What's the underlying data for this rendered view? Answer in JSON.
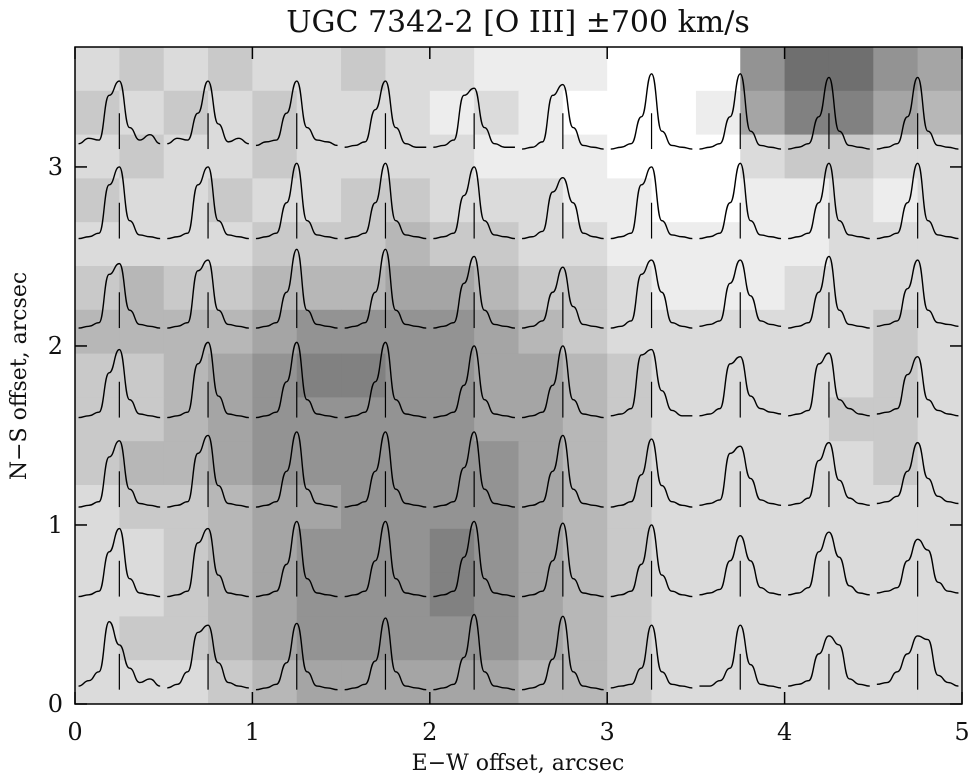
{
  "chart_data": {
    "type": "spectra-map",
    "title": "UGC 7342-2 [O III] ±700 km/s",
    "x_label": "E−W offset, arcsec",
    "y_label": "N−S offset, arcsec",
    "xlim": [
      0,
      5
    ],
    "ylim": [
      0,
      3.67
    ],
    "xticks": [
      0,
      1,
      2,
      3,
      4,
      5
    ],
    "yticks": [
      0,
      1,
      2,
      3
    ],
    "image": [
      [
        2,
        3,
        2,
        3,
        2,
        2,
        3,
        2,
        2,
        1,
        1,
        1,
        0,
        0,
        0,
        6,
        8,
        8,
        6,
        5
      ],
      [
        3,
        2,
        3,
        2,
        3,
        2,
        2,
        2,
        1,
        2,
        1,
        0,
        0,
        0,
        1,
        5,
        7,
        7,
        5,
        4
      ],
      [
        2,
        3,
        2,
        2,
        3,
        2,
        2,
        2,
        2,
        1,
        1,
        1,
        0,
        0,
        0,
        2,
        3,
        3,
        2,
        2
      ],
      [
        3,
        2,
        2,
        3,
        2,
        2,
        3,
        3,
        2,
        2,
        2,
        1,
        1,
        0,
        0,
        1,
        1,
        2,
        1,
        2
      ],
      [
        2,
        2,
        2,
        2,
        3,
        3,
        3,
        4,
        3,
        3,
        2,
        2,
        1,
        1,
        1,
        1,
        1,
        2,
        2,
        2
      ],
      [
        3,
        4,
        3,
        3,
        4,
        4,
        4,
        5,
        5,
        4,
        3,
        3,
        2,
        1,
        1,
        1,
        2,
        2,
        2,
        2
      ],
      [
        4,
        4,
        4,
        4,
        5,
        6,
        6,
        6,
        6,
        5,
        4,
        3,
        2,
        2,
        2,
        2,
        2,
        2,
        3,
        2
      ],
      [
        3,
        3,
        4,
        5,
        6,
        7,
        7,
        6,
        6,
        5,
        5,
        4,
        3,
        2,
        2,
        2,
        2,
        2,
        3,
        2
      ],
      [
        3,
        3,
        4,
        5,
        6,
        6,
        6,
        6,
        6,
        5,
        5,
        4,
        3,
        2,
        2,
        2,
        2,
        3,
        3,
        2
      ],
      [
        3,
        4,
        4,
        5,
        6,
        6,
        6,
        6,
        6,
        6,
        5,
        4,
        3,
        2,
        2,
        2,
        2,
        2,
        3,
        2
      ],
      [
        2,
        3,
        3,
        4,
        5,
        5,
        6,
        6,
        6,
        6,
        5,
        4,
        3,
        2,
        2,
        2,
        2,
        2,
        2,
        2
      ],
      [
        2,
        2,
        3,
        4,
        5,
        6,
        6,
        6,
        7,
        6,
        5,
        4,
        3,
        2,
        2,
        2,
        2,
        2,
        2,
        2
      ],
      [
        2,
        2,
        3,
        4,
        5,
        6,
        6,
        6,
        7,
        6,
        5,
        4,
        3,
        2,
        2,
        2,
        2,
        2,
        2,
        2
      ],
      [
        2,
        3,
        3,
        4,
        5,
        6,
        6,
        6,
        6,
        6,
        5,
        4,
        3,
        2,
        2,
        2,
        2,
        2,
        2,
        2
      ],
      [
        2,
        2,
        2,
        3,
        4,
        5,
        5,
        5,
        5,
        5,
        4,
        4,
        3,
        2,
        2,
        2,
        2,
        2,
        2,
        2
      ]
    ],
    "cols_x": [
      0.25,
      0.75,
      1.25,
      1.75,
      2.25,
      2.75,
      3.25,
      3.75,
      4.25,
      4.75
    ],
    "rows_y": [
      0.08,
      0.6,
      1.1,
      1.6,
      2.1,
      2.6,
      3.1
    ],
    "spectra": [
      [
        [
          0.02,
          0.05,
          0.1,
          0.38,
          0.25,
          0.12,
          0.04,
          0.06,
          0.02
        ],
        [
          0.01,
          0.03,
          0.1,
          0.32,
          0.36,
          0.15,
          0.04,
          0.02,
          0.01
        ],
        [
          0,
          0.01,
          0.03,
          0.15,
          0.37,
          0.1,
          0.02,
          0.01,
          0
        ],
        [
          0,
          0.01,
          0.03,
          0.16,
          0.4,
          0.1,
          0.02,
          0.01,
          0
        ],
        [
          0,
          0.01,
          0.03,
          0.18,
          0.42,
          0.1,
          0.02,
          0.01,
          0
        ],
        [
          0,
          0.01,
          0.03,
          0.17,
          0.41,
          0.1,
          0.02,
          0.01,
          0
        ],
        [
          0.01,
          0.02,
          0.03,
          0.12,
          0.36,
          0.1,
          0.03,
          0.02,
          0.01
        ],
        [
          0.02,
          0.02,
          0.05,
          0.12,
          0.36,
          0.14,
          0.03,
          0.02,
          0.01
        ],
        [
          0.02,
          0.03,
          0.05,
          0.2,
          0.3,
          0.25,
          0.06,
          0.03,
          0.02
        ],
        [
          0.03,
          0.04,
          0.1,
          0.2,
          0.3,
          0.28,
          0.08,
          0.04,
          0.02
        ]
      ],
      [
        [
          0,
          0.01,
          0.03,
          0.25,
          0.38,
          0.1,
          0.02,
          0.01,
          0
        ],
        [
          0,
          0.01,
          0.03,
          0.3,
          0.38,
          0.12,
          0.02,
          0.01,
          0
        ],
        [
          0,
          0.01,
          0.03,
          0.18,
          0.42,
          0.1,
          0.02,
          0.01,
          0
        ],
        [
          0,
          0.01,
          0.03,
          0.2,
          0.42,
          0.1,
          0.02,
          0.01,
          0
        ],
        [
          0,
          0.01,
          0.03,
          0.22,
          0.42,
          0.1,
          0.02,
          0.01,
          0
        ],
        [
          0,
          0.01,
          0.03,
          0.2,
          0.41,
          0.1,
          0.02,
          0.01,
          0
        ],
        [
          0,
          0.01,
          0.03,
          0.18,
          0.4,
          0.12,
          0.03,
          0.01,
          0
        ],
        [
          0.01,
          0.02,
          0.04,
          0.2,
          0.34,
          0.2,
          0.05,
          0.02,
          0.01
        ],
        [
          0.01,
          0.02,
          0.05,
          0.25,
          0.36,
          0.22,
          0.06,
          0.02,
          0.01
        ],
        [
          0.02,
          0.03,
          0.05,
          0.2,
          0.32,
          0.26,
          0.08,
          0.03,
          0.02
        ]
      ],
      [
        [
          0,
          0.01,
          0.03,
          0.28,
          0.37,
          0.1,
          0.02,
          0.01,
          0
        ],
        [
          0,
          0.01,
          0.03,
          0.3,
          0.4,
          0.12,
          0.02,
          0.01,
          0
        ],
        [
          0,
          0.01,
          0.03,
          0.2,
          0.42,
          0.1,
          0.02,
          0.01,
          0
        ],
        [
          0,
          0.01,
          0.03,
          0.2,
          0.42,
          0.1,
          0.02,
          0.01,
          0
        ],
        [
          0,
          0.01,
          0.03,
          0.22,
          0.42,
          0.1,
          0.02,
          0.01,
          0
        ],
        [
          0,
          0.01,
          0.03,
          0.2,
          0.4,
          0.1,
          0.02,
          0.01,
          0
        ],
        [
          0,
          0.01,
          0.03,
          0.18,
          0.38,
          0.12,
          0.03,
          0.01,
          0
        ],
        [
          0.01,
          0.02,
          0.04,
          0.3,
          0.34,
          0.16,
          0.04,
          0.02,
          0.01
        ],
        [
          0.01,
          0.02,
          0.05,
          0.26,
          0.36,
          0.15,
          0.05,
          0.02,
          0.01
        ],
        [
          0.02,
          0.03,
          0.06,
          0.2,
          0.36,
          0.16,
          0.06,
          0.03,
          0.02
        ]
      ],
      [
        [
          0,
          0.01,
          0.03,
          0.25,
          0.38,
          0.1,
          0.02,
          0.01,
          0
        ],
        [
          0,
          0.01,
          0.03,
          0.3,
          0.42,
          0.12,
          0.02,
          0.01,
          0
        ],
        [
          0,
          0.01,
          0.03,
          0.2,
          0.42,
          0.1,
          0.02,
          0.01,
          0
        ],
        [
          0,
          0.01,
          0.03,
          0.2,
          0.42,
          0.1,
          0.02,
          0.01,
          0
        ],
        [
          0,
          0.01,
          0.03,
          0.18,
          0.4,
          0.1,
          0.02,
          0.01,
          0
        ],
        [
          0,
          0.01,
          0.03,
          0.18,
          0.4,
          0.1,
          0.02,
          0.01,
          0
        ],
        [
          0.01,
          0.02,
          0.05,
          0.35,
          0.38,
          0.15,
          0.04,
          0.01,
          0.01
        ],
        [
          0.01,
          0.02,
          0.05,
          0.3,
          0.34,
          0.12,
          0.05,
          0.03,
          0.02
        ],
        [
          0.01,
          0.02,
          0.04,
          0.3,
          0.36,
          0.1,
          0.05,
          0.02,
          0.01
        ],
        [
          0.02,
          0.03,
          0.05,
          0.24,
          0.34,
          0.1,
          0.04,
          0.02,
          0.01
        ]
      ],
      [
        [
          0,
          0.01,
          0.03,
          0.3,
          0.36,
          0.1,
          0.02,
          0.01,
          0
        ],
        [
          0,
          0.01,
          0.03,
          0.32,
          0.38,
          0.1,
          0.02,
          0.01,
          0
        ],
        [
          0,
          0.01,
          0.03,
          0.2,
          0.44,
          0.1,
          0.02,
          0.01,
          0
        ],
        [
          0,
          0.01,
          0.03,
          0.2,
          0.44,
          0.1,
          0.02,
          0.01,
          0
        ],
        [
          0,
          0.01,
          0.03,
          0.25,
          0.4,
          0.1,
          0.02,
          0.01,
          0
        ],
        [
          0,
          0.01,
          0.04,
          0.2,
          0.34,
          0.12,
          0.02,
          0.01,
          0
        ],
        [
          0,
          0.01,
          0.04,
          0.3,
          0.38,
          0.2,
          0.03,
          0.01,
          0
        ],
        [
          0.01,
          0.02,
          0.04,
          0.25,
          0.38,
          0.18,
          0.04,
          0.02,
          0.01
        ],
        [
          0,
          0.01,
          0.03,
          0.2,
          0.4,
          0.1,
          0.02,
          0.01,
          0
        ],
        [
          0.01,
          0.02,
          0.04,
          0.22,
          0.38,
          0.1,
          0.03,
          0.02,
          0.01
        ]
      ],
      [
        [
          0,
          0.01,
          0.03,
          0.3,
          0.4,
          0.1,
          0.02,
          0.01,
          0
        ],
        [
          0,
          0.01,
          0.03,
          0.3,
          0.4,
          0.1,
          0.02,
          0.01,
          0
        ],
        [
          0,
          0.01,
          0.03,
          0.2,
          0.42,
          0.1,
          0.02,
          0.01,
          0
        ],
        [
          0,
          0.01,
          0.03,
          0.2,
          0.42,
          0.1,
          0.02,
          0.01,
          0
        ],
        [
          0,
          0.01,
          0.03,
          0.24,
          0.4,
          0.1,
          0.02,
          0.01,
          0
        ],
        [
          0,
          0.01,
          0.04,
          0.26,
          0.34,
          0.2,
          0.03,
          0.01,
          0
        ],
        [
          0,
          0.01,
          0.03,
          0.3,
          0.4,
          0.1,
          0.02,
          0.01,
          0
        ],
        [
          0,
          0.01,
          0.03,
          0.2,
          0.42,
          0.1,
          0.02,
          0.01,
          0
        ],
        [
          0,
          0.01,
          0.03,
          0.2,
          0.42,
          0.1,
          0.02,
          0.01,
          0
        ],
        [
          0,
          0.01,
          0.03,
          0.2,
          0.42,
          0.1,
          0.02,
          0.01,
          0
        ]
      ],
      [
        [
          0.03,
          0.06,
          0.05,
          0.3,
          0.38,
          0.12,
          0.05,
          0.08,
          0.03
        ],
        [
          0.03,
          0.06,
          0.05,
          0.2,
          0.38,
          0.14,
          0.04,
          0.06,
          0.03
        ],
        [
          0.02,
          0.04,
          0.05,
          0.2,
          0.38,
          0.12,
          0.05,
          0.04,
          0.02
        ],
        [
          0.01,
          0.02,
          0.04,
          0.22,
          0.38,
          0.12,
          0.03,
          0.01,
          0.01
        ],
        [
          0.01,
          0.02,
          0.05,
          0.3,
          0.34,
          0.12,
          0.03,
          0.01,
          0.01
        ],
        [
          0,
          0.01,
          0.04,
          0.3,
          0.36,
          0.12,
          0.02,
          0.01,
          0
        ],
        [
          0,
          0.01,
          0.03,
          0.18,
          0.42,
          0.1,
          0.02,
          0.01,
          0
        ],
        [
          0,
          0.01,
          0.03,
          0.18,
          0.42,
          0.1,
          0.02,
          0.01,
          0
        ],
        [
          0,
          0.01,
          0.03,
          0.18,
          0.4,
          0.1,
          0.02,
          0.01,
          0
        ],
        [
          0,
          0.01,
          0.03,
          0.18,
          0.4,
          0.1,
          0.02,
          0.01,
          0
        ]
      ]
    ]
  }
}
